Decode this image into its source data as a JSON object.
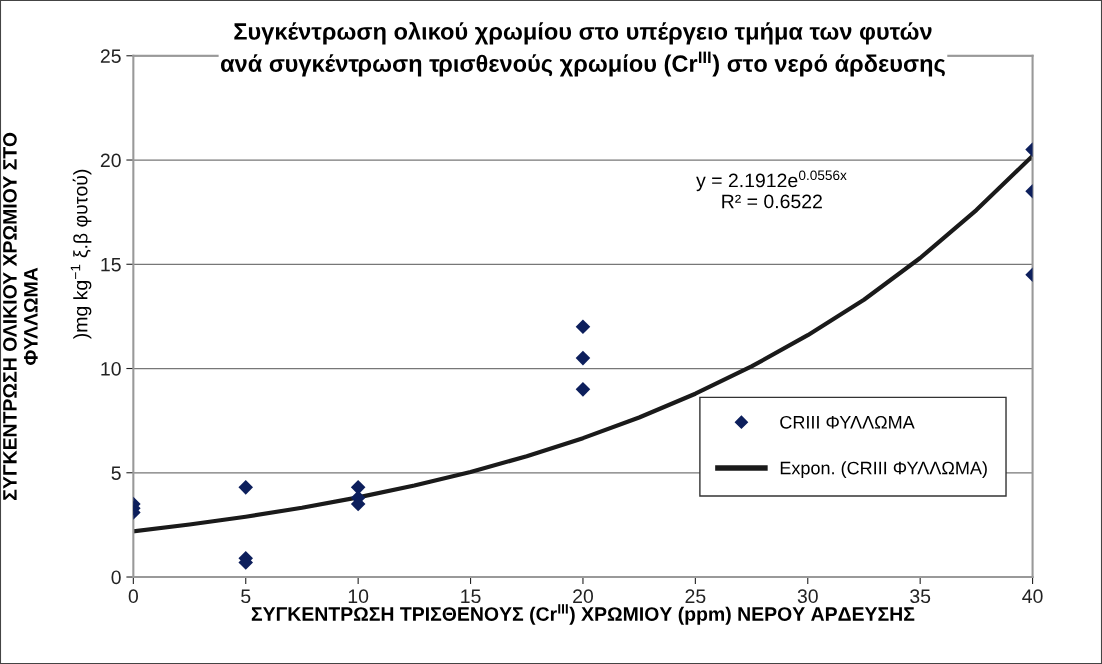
{
  "chart_data": {
    "type": "scatter",
    "title": "Συγκέντρωση ολικού χρωμίου στο υπέργειο τμήμα των φυτών\nανά συγκέντρωση τρισθενούς χρωμίου (Cr$^{III}$) στο νερό άρδευσης",
    "xlabel": "ΣΥΓΚΕΝΤΡΩΣΗ ΤΡΙΣΘΕΝΟΥΣ (Cr$^{III}$) ΧΡΩΜΙΟΥ (ppm) ΝΕΡΟΥ ΑΡΔΕΥΣΗΣ",
    "ylabel": "ΣΥΓΚΕΝΤΡΩΣΗ ΟΛΙΚΙΟΥ ΧΡΩΜΙΟΥ ΣΤΟ\nΦΥΛΛΩΜΑ",
    "annotations": [
      "y = 2.1912e$^{0.0556x}$\nR² = 0.6522",
      ")mg kg$^{−1}$ ξ.β φυτού)"
    ],
    "series": [
      {
        "name": "CRIII ΦΥΛΛΩΜΑ",
        "color": "#0d1f5c",
        "marker": "diamond",
        "x": [
          0,
          0,
          0,
          5,
          5,
          5,
          10,
          10,
          10,
          20,
          20,
          20,
          40,
          40,
          40
        ],
        "values": [
          3.5,
          3.3,
          3.1,
          4.3,
          0.9,
          0.7,
          4.3,
          3.8,
          3.5,
          12.0,
          10.5,
          9.0,
          20.5,
          18.5,
          14.5
        ]
      },
      {
        "name": "Expon. (CRIII ΦΥΛΛΩΜΑ)",
        "type": "line",
        "color": "#1a1a1a",
        "marker": "none",
        "line_style": "solid",
        "x": [
          0,
          2.5,
          5,
          7.5,
          10,
          12.5,
          15,
          17.5,
          20,
          22.5,
          25,
          27.5,
          30,
          32.5,
          35,
          37.5,
          40
        ],
        "values": [
          2.19,
          2.52,
          2.89,
          3.32,
          3.82,
          4.39,
          5.04,
          5.79,
          6.66,
          7.65,
          8.79,
          10.1,
          11.6,
          13.3,
          15.3,
          17.6,
          20.2
        ]
      }
    ],
    "xlim": [
      0,
      40
    ],
    "xticks": [
      0,
      5,
      10,
      15,
      20,
      25,
      30,
      35,
      40
    ],
    "ylim": [
      0,
      25
    ],
    "yticks": [
      0,
      5,
      10,
      15,
      20,
      25
    ],
    "grid": "y",
    "legend": "right"
  }
}
